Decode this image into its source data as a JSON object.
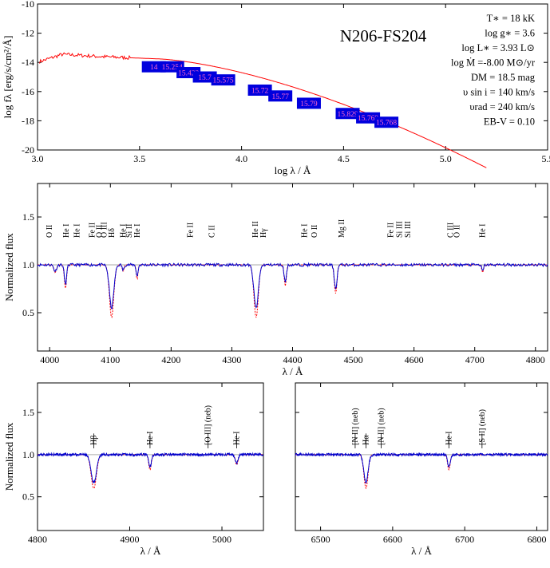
{
  "chart_data": [
    {
      "type": "line",
      "title": "N206-FS204",
      "xlabel": "log λ / Å",
      "ylabel": "log fλ [erg/s/cm²/Å]",
      "xlim": [
        3.0,
        5.5
      ],
      "ylim": [
        -20,
        -10
      ],
      "xticks": [
        "3.0",
        "3.5",
        "4.0",
        "4.5",
        "5.0",
        "5.5"
      ],
      "yticks": [
        "-20",
        "-18",
        "-16",
        "-14",
        "-12",
        "-10"
      ],
      "params": [
        "T∗ = 18 kK",
        "log g∗ = 3.6",
        "log L∗ = 3.93 L⊙",
        "log Ṁ =-8.00 M⊙/yr",
        "DM = 18.5 mag",
        "υ sin i = 140 km/s",
        "υrad = 240 km/s",
        "EB-V = 0.10"
      ],
      "photometry": [
        {
          "x": 3.57,
          "y": -14.3,
          "label": "14"
        },
        {
          "x": 3.66,
          "y": -14.3,
          "label": "15.254"
        },
        {
          "x": 3.74,
          "y": -14.7,
          "label": "15.422"
        },
        {
          "x": 3.82,
          "y": -15.0,
          "label": "15.7"
        },
        {
          "x": 3.91,
          "y": -15.2,
          "label": "15.575"
        },
        {
          "x": 4.09,
          "y": -15.9,
          "label": "15.72"
        },
        {
          "x": 4.19,
          "y": -16.3,
          "label": "15.77"
        },
        {
          "x": 4.33,
          "y": -16.8,
          "label": "15.79"
        },
        {
          "x": 4.52,
          "y": -17.5,
          "label": "15.829"
        },
        {
          "x": 4.62,
          "y": -17.8,
          "label": "15.769"
        },
        {
          "x": 4.71,
          "y": -18.1,
          "label": "15.768"
        }
      ],
      "model_color": "#ff0000",
      "box_color": "#0000dd"
    },
    {
      "type": "line",
      "xlabel": "λ / Å",
      "ylabel": "Normalized flux",
      "xlim": [
        3980,
        4820
      ],
      "ylim": [
        0.1,
        1.85
      ],
      "xticks": [
        "4000",
        "4100",
        "4200",
        "4300",
        "4400",
        "4500",
        "4600",
        "4700",
        "4800"
      ],
      "yticks": [
        "0.5",
        "1.0",
        "1.5"
      ],
      "series": [
        {
          "color": "#0000cc"
        },
        {
          "color": "#ff0000"
        }
      ],
      "lines": [
        {
          "x": 4000,
          "label": "O II"
        },
        {
          "x": 4027,
          "label": "He I"
        },
        {
          "x": 4045,
          "label": "He I"
        },
        {
          "x": 4070,
          "label": "Fe II"
        },
        {
          "x": 4082,
          "label": "O II"
        },
        {
          "x": 4090,
          "label": "O III"
        },
        {
          "x": 4102,
          "label": "Hδ"
        },
        {
          "x": 4121,
          "label": "He I"
        },
        {
          "x": 4131,
          "label": "Si II"
        },
        {
          "x": 4144,
          "label": "He I"
        },
        {
          "x": 4232,
          "label": "Fe II"
        },
        {
          "x": 4267,
          "label": "C II"
        },
        {
          "x": 4339,
          "label": "He II"
        },
        {
          "x": 4352,
          "label": "Hγ"
        },
        {
          "x": 4420,
          "label": "He I"
        },
        {
          "x": 4436,
          "label": "O II"
        },
        {
          "x": 4481,
          "label": "Mg II"
        },
        {
          "x": 4562,
          "label": "Fe II"
        },
        {
          "x": 4576,
          "label": "Si III"
        },
        {
          "x": 4590,
          "label": "Si III"
        },
        {
          "x": 4660,
          "label": "C III"
        },
        {
          "x": 4671,
          "label": "O II"
        },
        {
          "x": 4713,
          "label": "He I"
        }
      ],
      "absorption": [
        {
          "x": 4009,
          "depth": 0.08,
          "width": 3
        },
        {
          "x": 4026,
          "depth": 0.25,
          "width": 2.5
        },
        {
          "x": 4102,
          "depth": 0.55,
          "width": 5
        },
        {
          "x": 4121,
          "depth": 0.07,
          "width": 2
        },
        {
          "x": 4144,
          "depth": 0.15,
          "width": 2
        },
        {
          "x": 4340,
          "depth": 0.55,
          "width": 5
        },
        {
          "x": 4388,
          "depth": 0.22,
          "width": 2.5
        },
        {
          "x": 4471,
          "depth": 0.3,
          "width": 3
        },
        {
          "x": 4713,
          "depth": 0.08,
          "width": 2
        }
      ]
    },
    {
      "type": "line",
      "xlabel": "λ / Å",
      "ylabel": "Normalized flux",
      "xlim": [
        4800,
        5045
      ],
      "ylim": [
        0.1,
        1.85
      ],
      "xticks": [
        "4800",
        "4900",
        "5000"
      ],
      "yticks": [
        "0.5",
        "1.0",
        "1.5"
      ],
      "lines": [
        {
          "x": 4861,
          "label": "Hβ"
        },
        {
          "x": 4922,
          "label": "He I"
        },
        {
          "x": 4985,
          "label": "[O III] (neb)"
        },
        {
          "x": 5016,
          "label": "He I"
        }
      ],
      "absorption": [
        {
          "x": 4861,
          "depth": 0.4,
          "width": 4
        },
        {
          "x": 4922,
          "depth": 0.18,
          "width": 2
        },
        {
          "x": 5016,
          "depth": 0.12,
          "width": 2
        }
      ]
    },
    {
      "type": "line",
      "xlabel": "λ / Å",
      "xlim": [
        6465,
        6815
      ],
      "ylim": [
        0.1,
        1.85
      ],
      "xticks": [
        "6500",
        "6600",
        "6700",
        "6800"
      ],
      "lines": [
        {
          "x": 6548,
          "label": "[N II] (neb)"
        },
        {
          "x": 6563,
          "label": "Hα"
        },
        {
          "x": 6678,
          "label": "He I"
        },
        {
          "x": 6584,
          "label": "[N II] (neb)"
        },
        {
          "x": 6724,
          "label": "[S II] (neb)"
        }
      ],
      "absorption": [
        {
          "x": 6563,
          "depth": 0.4,
          "width": 4
        },
        {
          "x": 6678,
          "depth": 0.18,
          "width": 2.5
        }
      ]
    }
  ]
}
